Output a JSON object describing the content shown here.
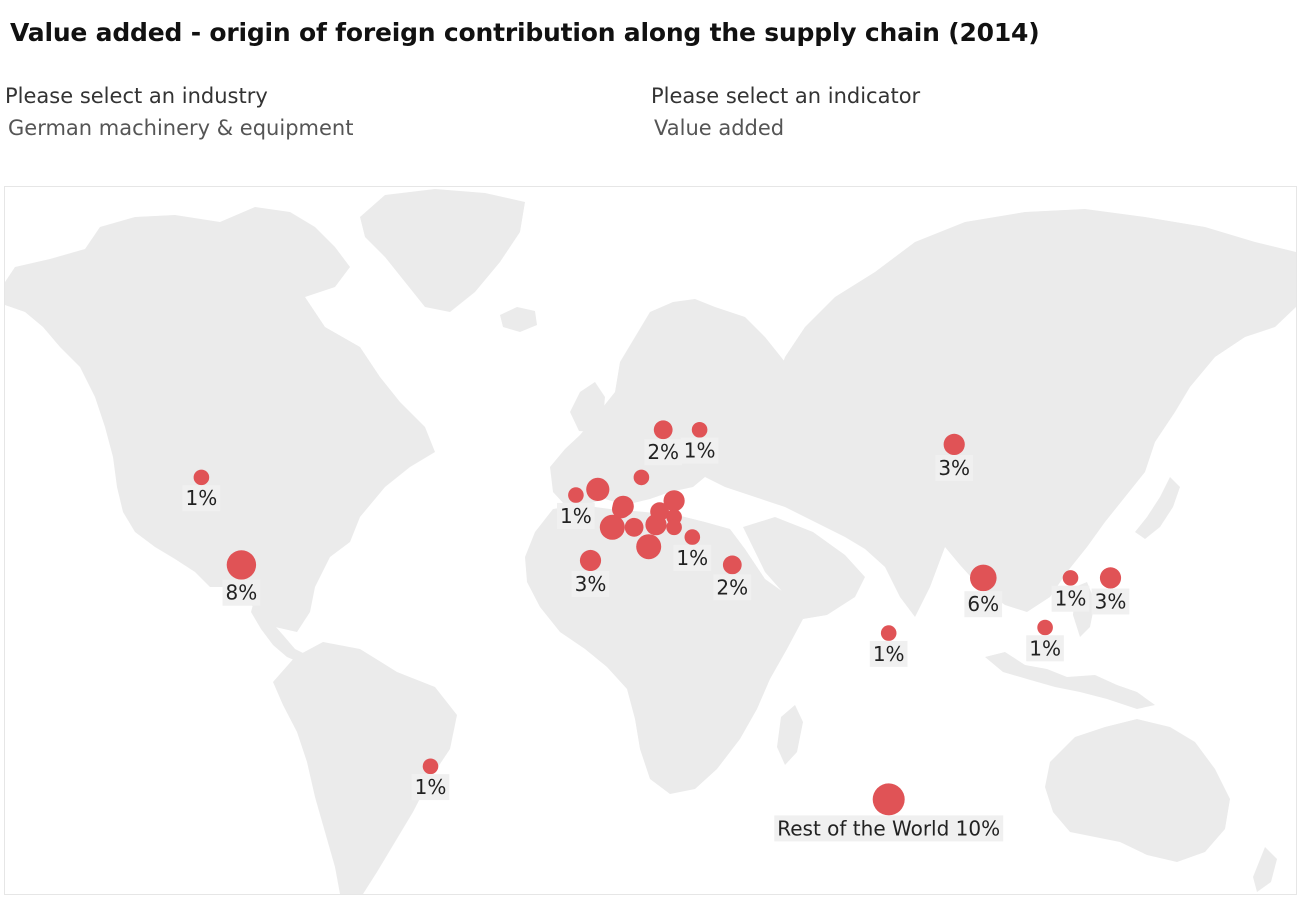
{
  "title": "Value added - origin of foreign contribution along the supply chain (2014)",
  "filters": {
    "industry": {
      "label": "Please select an industry",
      "value": "German machinery & equipment"
    },
    "indicator": {
      "label": "Please select an indicator",
      "value": "Value added"
    }
  },
  "colors": {
    "bubble": "#e05356",
    "land": "#ebebeb",
    "ocean": "#ffffff",
    "label_bg": "#f0f0f0"
  },
  "chart_data": {
    "type": "map-bubble",
    "title": "Value added - origin of foreign contribution along the supply chain (2014)",
    "legend": "none",
    "points": [
      {
        "lon": -100,
        "lat": 39,
        "value": 8,
        "label": "8%"
      },
      {
        "lon": -111,
        "lat": 56,
        "value": 1,
        "label": "1%"
      },
      {
        "lon": -48,
        "lat": -16,
        "value": 1,
        "label": "1%"
      },
      {
        "lon": -4,
        "lat": 40,
        "value": 3,
        "label": "3%"
      },
      {
        "lon": -8,
        "lat": 53,
        "value": 1,
        "label": "1%"
      },
      {
        "lon": -2,
        "lat": 54,
        "value": 4,
        "label": ""
      },
      {
        "lon": 2,
        "lat": 47,
        "value": 5,
        "label": ""
      },
      {
        "lon": 5,
        "lat": 51,
        "value": 3,
        "label": ""
      },
      {
        "lon": 4.5,
        "lat": 50.5,
        "value": 2,
        "label": ""
      },
      {
        "lon": 8,
        "lat": 47,
        "value": 2,
        "label": ""
      },
      {
        "lon": 12,
        "lat": 43,
        "value": 5,
        "label": ""
      },
      {
        "lon": 14,
        "lat": 47.5,
        "value": 3,
        "label": ""
      },
      {
        "lon": 15,
        "lat": 50,
        "value": 2,
        "label": ""
      },
      {
        "lon": 19,
        "lat": 52,
        "value": 3,
        "label": ""
      },
      {
        "lon": 19,
        "lat": 49,
        "value": 1,
        "label": ""
      },
      {
        "lon": 19,
        "lat": 47,
        "value": 1,
        "label": ""
      },
      {
        "lon": 10,
        "lat": 56,
        "value": 1,
        "label": ""
      },
      {
        "lon": 15,
        "lat": 60,
        "value": 1,
        "label": ""
      },
      {
        "lon": 16,
        "lat": 63,
        "value": 2,
        "label": "2%"
      },
      {
        "lon": 26,
        "lat": 63,
        "value": 1,
        "label": "1%"
      },
      {
        "lon": 24,
        "lat": 45,
        "value": 1,
        "label": "1%"
      },
      {
        "lon": 35,
        "lat": 39,
        "value": 2,
        "label": "2%"
      },
      {
        "lon": 96,
        "lat": 61,
        "value": 3,
        "label": "3%"
      },
      {
        "lon": 78,
        "lat": 22,
        "value": 1,
        "label": "1%"
      },
      {
        "lon": 104,
        "lat": 36,
        "value": 6,
        "label": "6%"
      },
      {
        "lon": 128,
        "lat": 36,
        "value": 1,
        "label": "1%"
      },
      {
        "lon": 139,
        "lat": 36,
        "value": 3,
        "label": "3%"
      },
      {
        "lon": 121,
        "lat": 23.5,
        "value": 1,
        "label": "1%"
      },
      {
        "lon": 78,
        "lat": -25,
        "value": 10,
        "label": "Rest of the World 10%"
      }
    ]
  }
}
